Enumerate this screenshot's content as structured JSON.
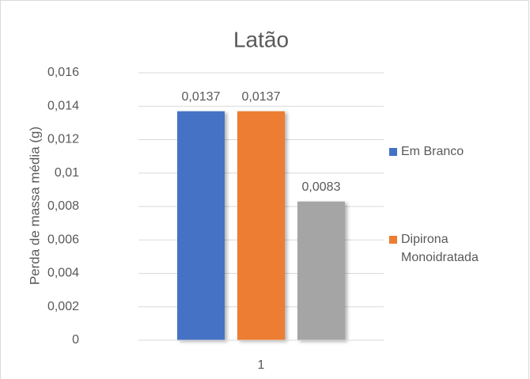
{
  "chart_data": {
    "type": "bar",
    "title": "Latão",
    "y_label": "Perda de massa média (g)",
    "categories": [
      "1"
    ],
    "series": [
      {
        "name": "Em Branco",
        "color": "#4472c4",
        "values": [
          0.0137
        ],
        "value_labels": [
          "0,0137"
        ]
      },
      {
        "name": "Dipirona Monoidratada",
        "color": "#ed7d31",
        "values": [
          0.0137
        ],
        "value_labels": [
          "0,0137"
        ]
      },
      {
        "color": "#a5a5a5",
        "values": [
          0.0083
        ],
        "value_labels": [
          "0,0083"
        ]
      }
    ],
    "ylim": [
      0,
      0.016
    ],
    "yticks": [
      0,
      {
        "value": 0.002,
        "label": "0,002"
      },
      {
        "value": 0.004,
        "label": "0,004"
      },
      {
        "value": 0.006,
        "label": "0,006"
      },
      {
        "value": 0.008,
        "label": "0,008"
      },
      {
        "value": 0.01,
        "label": "0,01"
      },
      {
        "value": 0.012,
        "label": "0,012"
      },
      {
        "value": 0.014,
        "label": "0,014"
      },
      {
        "value": 0.016,
        "label": "0,016"
      }
    ],
    "grid": true,
    "legend": "right"
  }
}
